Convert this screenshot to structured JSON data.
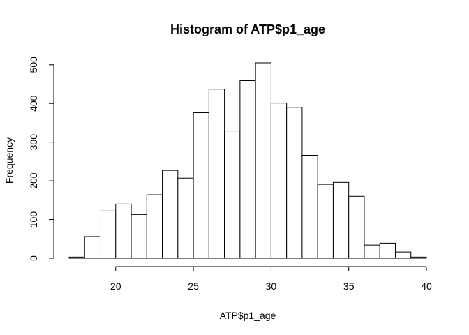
{
  "chart_data": {
    "type": "bar",
    "title": "Histogram of ATP$p1_age",
    "xlabel": "ATP$p1_age",
    "ylabel": "Frequency",
    "bin_edges": [
      17,
      18,
      19,
      20,
      21,
      22,
      23,
      24,
      25,
      26,
      27,
      28,
      29,
      30,
      31,
      32,
      33,
      34,
      35,
      36,
      37,
      38,
      39,
      40
    ],
    "values": [
      3,
      56,
      122,
      140,
      113,
      164,
      227,
      207,
      376,
      437,
      329,
      459,
      505,
      401,
      390,
      266,
      191,
      196,
      160,
      34,
      39,
      16,
      3
    ],
    "xlim": [
      17,
      40
    ],
    "ylim": [
      0,
      505
    ],
    "x_ticks": [
      20,
      25,
      30,
      35,
      40
    ],
    "y_ticks": [
      0,
      100,
      200,
      300,
      400,
      500
    ],
    "grid": false,
    "bar_fill": "#ffffff",
    "bar_stroke": "#000000"
  }
}
